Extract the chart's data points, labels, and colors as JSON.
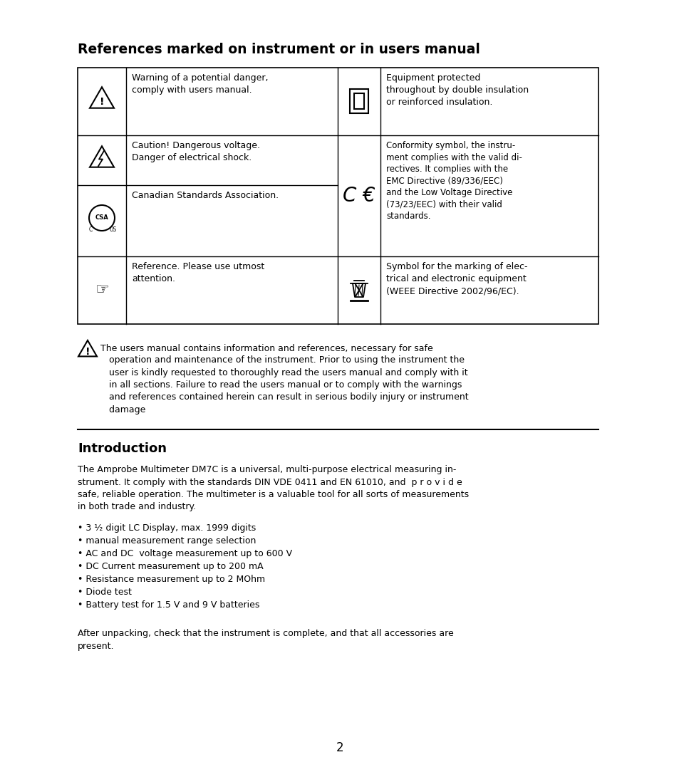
{
  "bg_color": "#ffffff",
  "section1_title": "References marked on instrument or in users manual",
  "warning_text_line1": "The users manual contains information and references, necessary for safe",
  "warning_text_rest": "   operation and maintenance of the instrument. Prior to using the instrument the\n   user is kindly requested to thoroughly read the users manual and comply with it\n   in all sections. Failure to read the users manual or to comply with the warnings\n   and references contained herein can result in serious bodily injury or instrument\n   damage",
  "section2_title": "Introduction",
  "intro_para1": "The Amprobe Multimeter DM7C is a universal, multi-purpose electrical measuring in-\nstrument. It comply with the standards DIN VDE 0411 and EN 61010, and  p r o v i d e\nsafe, reliable operation. The multimeter is a valuable tool for all sorts of measurements\nin both trade and industry.",
  "bullet_points": [
    "• 3 ¹⁄₂ digit LC Display, max. 1999 digits",
    "• manual measurement range selection",
    "• AC and DC  voltage measurement up to 600 V",
    "• DC Current measurement up to 200 mA",
    "• Resistance measurement up to 2 MOhm",
    "• Diode test",
    "• Battery test for 1.5 V and 9 V batteries"
  ],
  "intro_para2": "After unpacking, check that the instrument is complete, and that all accessories are\npresent.",
  "page_number": "2",
  "text_color": "#000000"
}
